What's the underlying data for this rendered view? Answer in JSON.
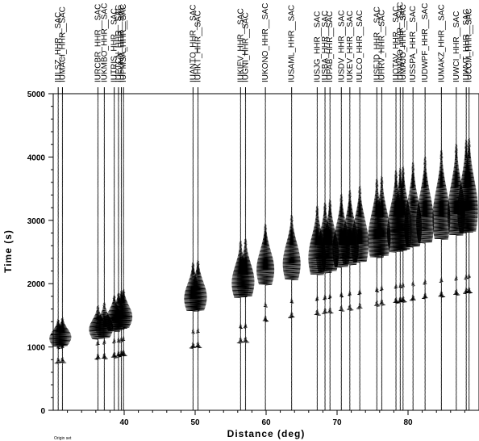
{
  "chart_data": {
    "type": "record-section",
    "xlabel": "Distance (deg)",
    "ylabel": "Time (s)",
    "xlim": [
      30.0,
      90.0
    ],
    "ylim": [
      0,
      5000
    ],
    "xticks": [
      40,
      50,
      60,
      70,
      80
    ],
    "yticks": [
      0,
      1000,
      2000,
      3000,
      4000,
      5000
    ],
    "footnote": "Origin set",
    "stations": [
      {
        "label": "IULSZ_HHR__SAC",
        "distance": 30.7,
        "p_time": 740,
        "s_time": 1060
      },
      {
        "label": "IUMACI_HHR__SAC",
        "distance": 31.3,
        "p_time": 750,
        "s_time": 1080
      },
      {
        "label": "IURCBR_HHR__SAC",
        "distance": 36.3,
        "p_time": 800,
        "s_time": 1180
      },
      {
        "label": "IUKMBO_HHR__SAC",
        "distance": 37.2,
        "p_time": 810,
        "s_time": 1210
      },
      {
        "label": "IUTRIS_HHR__SAC",
        "distance": 38.6,
        "p_time": 830,
        "s_time": 1300
      },
      {
        "label": "IUPTCN_HHR__SAC",
        "distance": 39.2,
        "p_time": 840,
        "s_time": 1330
      },
      {
        "label": "IUFUNA_HHR__SAC",
        "distance": 39.6,
        "p_time": 850,
        "s_time": 1350
      },
      {
        "label": "IUPMSA_HHR__SAC",
        "distance": 39.9,
        "p_time": 860,
        "s_time": 1370
      },
      {
        "label": "IUANTO_HHR__SAC",
        "distance": 49.7,
        "p_time": 980,
        "s_time": 1620
      },
      {
        "label": "IUHKT_HHR__SAC",
        "distance": 50.4,
        "p_time": 990,
        "s_time": 1640
      },
      {
        "label": "IUKIEV_HHR__SAC",
        "distance": 56.4,
        "p_time": 1060,
        "s_time": 1840
      },
      {
        "label": "IUGNI_HHR__SAC",
        "distance": 57.1,
        "p_time": 1070,
        "s_time": 1860
      },
      {
        "label": "IUKONO_HHR__SAC",
        "distance": 59.9,
        "p_time": 1400,
        "s_time": 2040
      },
      {
        "label": "IUSAML_HHR__SAC",
        "distance": 63.6,
        "p_time": 1460,
        "s_time": 2120
      },
      {
        "label": "IUSJG_HHR__SAC",
        "distance": 67.2,
        "p_time": 1500,
        "s_time": 2200
      },
      {
        "label": "IUSBA_HHR__SAC",
        "distance": 68.3,
        "p_time": 1520,
        "s_time": 2230
      },
      {
        "label": "IUPAB_HHR__SAC",
        "distance": 69.0,
        "p_time": 1530,
        "s_time": 2260
      },
      {
        "label": "IUSDV_HHR__SAC",
        "distance": 70.6,
        "p_time": 1560,
        "s_time": 2320
      },
      {
        "label": "IUKEV_HHR__SAC",
        "distance": 71.8,
        "p_time": 1580,
        "s_time": 2360
      },
      {
        "label": "IULCO_HHR__SAC",
        "distance": 73.2,
        "p_time": 1600,
        "s_time": 2400
      },
      {
        "label": "IUSFJD_HHR__SAC",
        "distance": 75.6,
        "p_time": 1640,
        "s_time": 2470
      },
      {
        "label": "IUHRV_HHR__SAC",
        "distance": 76.3,
        "p_time": 1660,
        "s_time": 2500
      },
      {
        "label": "IUOTAV_HHR__SAC",
        "distance": 78.3,
        "p_time": 1690,
        "s_time": 2560
      },
      {
        "label": "IUNWAO_HHR__SAC",
        "distance": 78.9,
        "p_time": 1700,
        "s_time": 2580
      },
      {
        "label": "IUMAJO_HHR__SAC",
        "distance": 79.3,
        "p_time": 1710,
        "s_time": 2600
      },
      {
        "label": "IUSSPA_HHR__SAC",
        "distance": 80.7,
        "p_time": 1730,
        "s_time": 2640
      },
      {
        "label": "IUDWPF_HHR__SAC",
        "distance": 82.4,
        "p_time": 1760,
        "s_time": 2700
      },
      {
        "label": "IUMAKZ_HHR__SAC",
        "distance": 84.7,
        "p_time": 1790,
        "s_time": 2760
      },
      {
        "label": "IUWCI_HHR__SAC",
        "distance": 86.8,
        "p_time": 1820,
        "s_time": 2820
      },
      {
        "label": "IUWVT_HHR__SAC",
        "distance": 88.2,
        "p_time": 1840,
        "s_time": 2860
      },
      {
        "label": "IUCCM_HHR__SAC",
        "distance": 88.6,
        "p_time": 1850,
        "s_time": 2880
      }
    ]
  }
}
